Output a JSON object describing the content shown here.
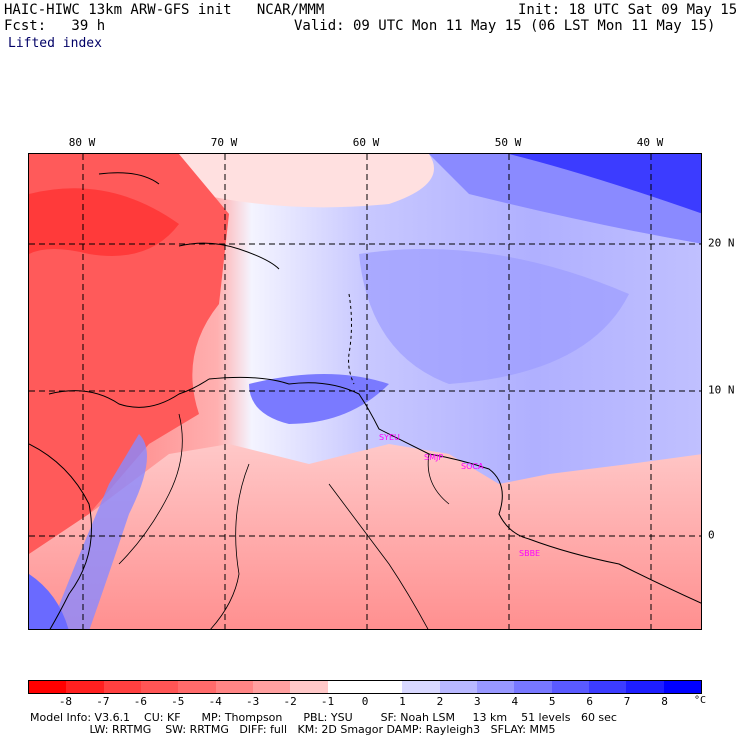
{
  "header": {
    "line1_left": "HAIC-HIWC 13km ARW-GFS init   NCAR/MMM",
    "line1_right": "Init: 18 UTC Sat 09 May 15",
    "line2_left": "Fcst:   39 h",
    "line2_right": "Valid: 09 UTC Mon 11 May 15 (06 LST Mon 11 May 15)",
    "field": "Lifted index"
  },
  "map": {
    "longitude_labels": [
      "80 W",
      "70 W",
      "60 W",
      "50 W",
      "40 W"
    ],
    "latitude_labels": [
      "20 N",
      "10 N",
      "0"
    ],
    "stations": [
      "SYEU",
      "SMJP",
      "SOCA",
      "SBBE"
    ]
  },
  "colorbar": {
    "colors": [
      "#ff0000",
      "#ff2020",
      "#ff4040",
      "#ff5555",
      "#ff6b6b",
      "#ff8585",
      "#ffa0a0",
      "#ffc8c8",
      "#ffffff",
      "#ffffff",
      "#d8d8ff",
      "#b8b8ff",
      "#9898ff",
      "#7878ff",
      "#5a5aff",
      "#3c3cff",
      "#1e1eff",
      "#0000ff"
    ],
    "ticks": [
      "-8",
      "-7",
      "-6",
      "-5",
      "-4",
      "-3",
      "-2",
      "-1",
      "0",
      "1",
      "2",
      "3",
      "4",
      "5",
      "6",
      "7",
      "8"
    ],
    "unit": "°C"
  },
  "footer": {
    "line1": "Model Info: V3.6.1    CU: KF      MP: Thompson      PBL: YSU        SF: Noah LSM     13 km    51 levels   60 sec",
    "line2": "                 LW: RRTMG    SW: RRTMG   DIFF: full   KM: 2D Smagor DAMP: Rayleigh3   SFLAY: MM5"
  }
}
